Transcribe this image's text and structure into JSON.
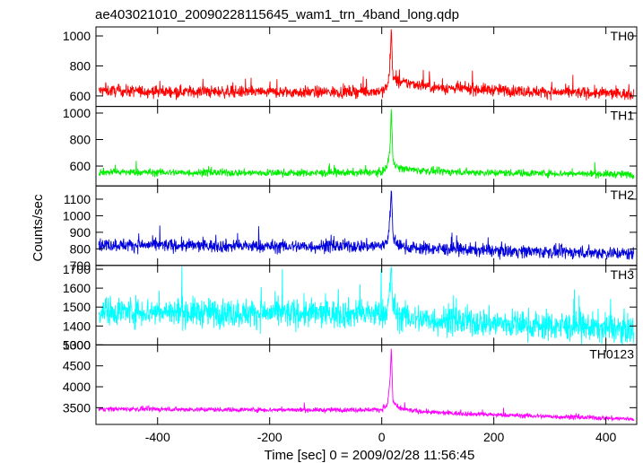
{
  "chart_data": {
    "type": "line",
    "title": "ae403021010_20090228115645_wam1_trn_4band_long.qdp",
    "xlabel": "Time [sec] 0 = 2009/02/28 11:56:45",
    "ylabel": "Counts/sec",
    "xlim": [
      -510,
      455
    ],
    "x_ticks": [
      -400,
      -200,
      0,
      200,
      400
    ],
    "grid": false,
    "legend": "none",
    "panels": [
      {
        "name": "TH0",
        "color": "#ff0000",
        "ylim": [
          530,
          1060
        ],
        "y_ticks": [
          600,
          800,
          1000
        ],
        "x": [
          -505,
          -400,
          -300,
          -200,
          -100,
          0,
          10,
          15,
          17,
          20,
          30,
          60,
          100,
          200,
          300,
          400,
          450
        ],
        "y": [
          635,
          630,
          628,
          625,
          625,
          632,
          660,
          800,
          1055,
          720,
          690,
          680,
          655,
          640,
          625,
          618,
          610
        ],
        "noise": 28
      },
      {
        "name": "TH1",
        "color": "#00ee00",
        "ylim": [
          450,
          1050
        ],
        "y_ticks": [
          600,
          800,
          1000
        ],
        "x": [
          -505,
          -400,
          -300,
          -200,
          -100,
          0,
          10,
          15,
          17,
          20,
          30,
          60,
          100,
          200,
          300,
          400,
          450
        ],
        "y": [
          555,
          552,
          550,
          548,
          548,
          553,
          600,
          750,
          1040,
          640,
          585,
          570,
          558,
          550,
          545,
          540,
          535
        ],
        "noise": 20
      },
      {
        "name": "TH2",
        "color": "#0000dd",
        "ylim": [
          700,
          1180
        ],
        "y_ticks": [
          700,
          800,
          900,
          1000,
          1100
        ],
        "x": [
          -505,
          -400,
          -300,
          -200,
          -100,
          0,
          10,
          15,
          17,
          20,
          30,
          60,
          100,
          200,
          300,
          400,
          450
        ],
        "y": [
          825,
          822,
          818,
          815,
          815,
          818,
          850,
          1000,
          1170,
          870,
          820,
          805,
          800,
          790,
          782,
          776,
          770
        ],
        "noise": 28
      },
      {
        "name": "TH3",
        "color": "#00ffff",
        "ylim": [
          1300,
          1720
        ],
        "y_ticks": [
          1300,
          1400,
          1500,
          1600,
          1700
        ],
        "x": [
          -505,
          -400,
          -300,
          -200,
          -100,
          0,
          10,
          15,
          17,
          20,
          30,
          60,
          100,
          200,
          300,
          400,
          450
        ],
        "y": [
          1480,
          1475,
          1470,
          1468,
          1465,
          1465,
          1480,
          1600,
          1715,
          1500,
          1455,
          1440,
          1430,
          1415,
          1400,
          1390,
          1380
        ],
        "noise": 55
      },
      {
        "name": "TH0123",
        "color": "#ff00ff",
        "ylim": [
          3100,
          5000
        ],
        "y_ticks": [
          3500,
          4000,
          4500,
          5000
        ],
        "x": [
          -505,
          -400,
          -300,
          -200,
          -100,
          0,
          10,
          15,
          17,
          20,
          30,
          60,
          100,
          200,
          300,
          400,
          450
        ],
        "y": [
          3470,
          3465,
          3455,
          3450,
          3445,
          3455,
          3550,
          4200,
          4950,
          3650,
          3480,
          3420,
          3380,
          3330,
          3290,
          3250,
          3230
        ],
        "noise": 40
      }
    ]
  }
}
